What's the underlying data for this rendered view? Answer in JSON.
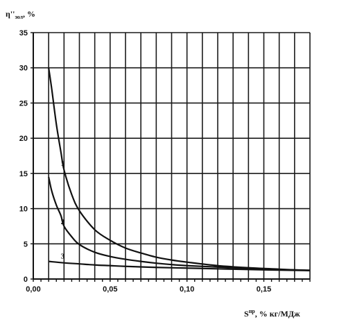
{
  "chart_data": {
    "type": "line",
    "ylabel_main": "η''",
    "ylabel_sub": "зол",
    "ylabel_unit": ", %",
    "xlabel_main": "S",
    "xlabel_sup": "пр",
    "xlabel_unit": ", % кг/МДж",
    "xlim": [
      0,
      0.18
    ],
    "ylim": [
      0,
      35
    ],
    "x_ticks": [
      0,
      0.05,
      0.1,
      0.15
    ],
    "x_tick_labels": [
      "0,00",
      "0,05",
      "0,10",
      "0,15"
    ],
    "y_ticks": [
      0,
      5,
      10,
      15,
      20,
      25,
      30,
      35
    ],
    "y_tick_labels": [
      "0",
      "5",
      "10",
      "15",
      "20",
      "25",
      "30",
      "35"
    ],
    "grid": true,
    "series": [
      {
        "name": "1",
        "x": [
          0.01,
          0.012,
          0.015,
          0.018,
          0.02,
          0.025,
          0.03,
          0.04,
          0.05,
          0.06,
          0.07,
          0.08,
          0.09,
          0.1,
          0.12,
          0.14,
          0.16,
          0.18
        ],
        "y": [
          30,
          27,
          22,
          18,
          15.5,
          12,
          9.7,
          7,
          5.5,
          4.4,
          3.7,
          3.1,
          2.7,
          2.4,
          1.9,
          1.6,
          1.4,
          1.2
        ]
      },
      {
        "name": "2",
        "x": [
          0.01,
          0.012,
          0.015,
          0.018,
          0.02,
          0.025,
          0.03,
          0.04,
          0.05,
          0.06,
          0.07,
          0.08,
          0.09,
          0.1,
          0.12,
          0.14,
          0.16,
          0.18
        ],
        "y": [
          14.5,
          12.5,
          10.5,
          9,
          7.5,
          6,
          4.9,
          3.8,
          3.2,
          2.8,
          2.5,
          2.25,
          2.05,
          1.9,
          1.7,
          1.5,
          1.35,
          1.25
        ]
      },
      {
        "name": "3",
        "x": [
          0.01,
          0.02,
          0.03,
          0.04,
          0.05,
          0.06,
          0.08,
          0.1,
          0.12,
          0.14,
          0.16,
          0.18
        ],
        "y": [
          2.5,
          2.3,
          2.15,
          2.0,
          1.9,
          1.8,
          1.65,
          1.55,
          1.45,
          1.35,
          1.27,
          1.2
        ]
      }
    ]
  }
}
